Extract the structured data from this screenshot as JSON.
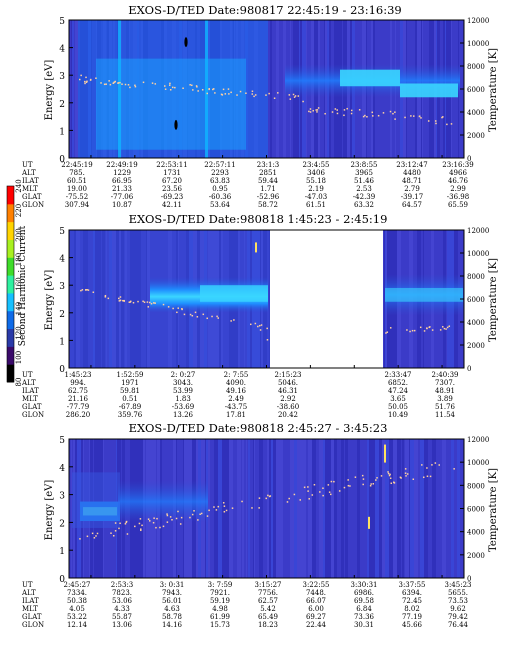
{
  "colors": {
    "background_spectrogram": "#3b3bc8",
    "band_blue": "#1e90ff",
    "band_cyan": "#40e0ff",
    "temperature_dots": "#ffd0a0"
  },
  "colorbar": {
    "label": "Second Harmonic Current",
    "ticks": [
      "80",
      "100",
      "120",
      "140",
      "160",
      "180",
      "200",
      "220",
      "240"
    ],
    "colors": [
      "#000000",
      "#3a0a6a",
      "#2a3aa8",
      "#0f6be8",
      "#16c0ff",
      "#2ef0a0",
      "#3fdc2a",
      "#a8f020",
      "#ffd400",
      "#ff8000",
      "#ff0000"
    ]
  },
  "row_labels": [
    "UT",
    "ALT",
    "ILAT",
    "MLT",
    "GLAT",
    "GLON"
  ],
  "chart_data": [
    {
      "type": "heatmap",
      "title": "EXOS-D/TED   Date:980817  22:45:19 - 23:16:39",
      "ylabel": "Energy [eV]",
      "y2label": "Temperature [K]",
      "ylim": [
        0,
        5
      ],
      "y2lim": [
        0,
        12000
      ],
      "yticks": [
        "0",
        "1",
        "2",
        "3",
        "4",
        "5"
      ],
      "y2ticks": [
        "0",
        "2000",
        "4000",
        "6000",
        "8000",
        "10000",
        "12000"
      ],
      "orbit_table": [
        [
          "22:45:19",
          "22:49:19",
          "22:53:11",
          "22:57:11",
          "23:1:3",
          "23:4:55",
          "23:8:55",
          "23:12:47",
          "23:16:39"
        ],
        [
          "785.",
          "1229",
          "1731",
          "2293",
          "2851",
          "3406",
          "3965",
          "4480",
          "4966"
        ],
        [
          "60.51",
          "66.95",
          "67.20",
          "63.83",
          "59.44",
          "55.18",
          "51.46",
          "48.71",
          "46.76"
        ],
        [
          "19.00",
          "21.33",
          "23.56",
          "0.95",
          "1.71",
          "2.19",
          "2.53",
          "2.79",
          "2.99"
        ],
        [
          "-75.52",
          "-77.06",
          "-69.23",
          "-60.36",
          "-52.96",
          "-47.03",
          "-42.39",
          "-39.17",
          "-36.98"
        ],
        [
          "307.94",
          "10.87",
          "42.11",
          "53.64",
          "58.72",
          "61.51",
          "63.32",
          "64.57",
          "65.59"
        ]
      ]
    },
    {
      "type": "heatmap",
      "title": "EXOS-D/TED    Date:980818   1:45:23 - 2:45:19",
      "ylabel": "Energy [eV]",
      "y2label": "Temperature [K]",
      "ylim": [
        0,
        5
      ],
      "y2lim": [
        0,
        12000
      ],
      "yticks": [
        "0",
        "1",
        "2",
        "3",
        "4",
        "5"
      ],
      "y2ticks": [
        "0",
        "2000",
        "4000",
        "6000",
        "8000",
        "10000",
        "12000"
      ],
      "orbit_table": [
        [
          "1:45:23",
          "1:52:59",
          "2: 0:27",
          "2: 7:55",
          "2:15:23",
          "",
          "2:33:47",
          "2:40:39"
        ],
        [
          "994.",
          "1971",
          "3043.",
          "4090.",
          "5046.",
          "",
          "6852.",
          "7307."
        ],
        [
          "62.75",
          "59.81",
          "53.99",
          "49.16",
          "46.31",
          "",
          "47.24",
          "48.91"
        ],
        [
          "21.16",
          "0.51",
          "1.83",
          "2.49",
          "2.92",
          "",
          "3.65",
          "3.89"
        ],
        [
          "-77.79",
          "-67.89",
          "-53.69",
          "-43.75",
          "-38.60",
          "",
          "50.05",
          "51.76"
        ],
        [
          "286.20",
          "359.76",
          "13.26",
          "17.81",
          "20.42",
          "",
          "10.49",
          "11.54"
        ]
      ]
    },
    {
      "type": "heatmap",
      "title": "EXOS-D/TED    Date:980818   2:45:27 - 3:45:23",
      "ylabel": "Energy [eV]",
      "y2label": "Temperature [K]",
      "ylim": [
        0,
        5
      ],
      "y2lim": [
        0,
        12000
      ],
      "yticks": [
        "0",
        "1",
        "2",
        "3",
        "4",
        "5"
      ],
      "y2ticks": [
        "0",
        "2000",
        "4000",
        "6000",
        "8000",
        "10000",
        "12000"
      ],
      "orbit_table": [
        [
          "2:45:27",
          "2:53:3",
          "3: 0:31",
          "3: 7:59",
          "3:15:27",
          "3:22:55",
          "3:30:31",
          "3:37:55",
          "3:45:23"
        ],
        [
          "7334.",
          "7823.",
          "7943.",
          "7921.",
          "7756.",
          "7448.",
          "6986.",
          "6394.",
          "5655."
        ],
        [
          "50.38",
          "53.06",
          "56.01",
          "59.19",
          "62.57",
          "66.07",
          "69.58",
          "72.45",
          "73.53"
        ],
        [
          "4.05",
          "4.33",
          "4.63",
          "4.98",
          "5.42",
          "6.00",
          "6.84",
          "8.02",
          "9.62"
        ],
        [
          "53.22",
          "55.87",
          "58.78",
          "61.99",
          "65.49",
          "69.27",
          "73.36",
          "77.19",
          "79.42"
        ],
        [
          "12.14",
          "13.06",
          "14.16",
          "15.73",
          "18.23",
          "22.44",
          "30.31",
          "45.66",
          "76.44"
        ]
      ]
    }
  ]
}
